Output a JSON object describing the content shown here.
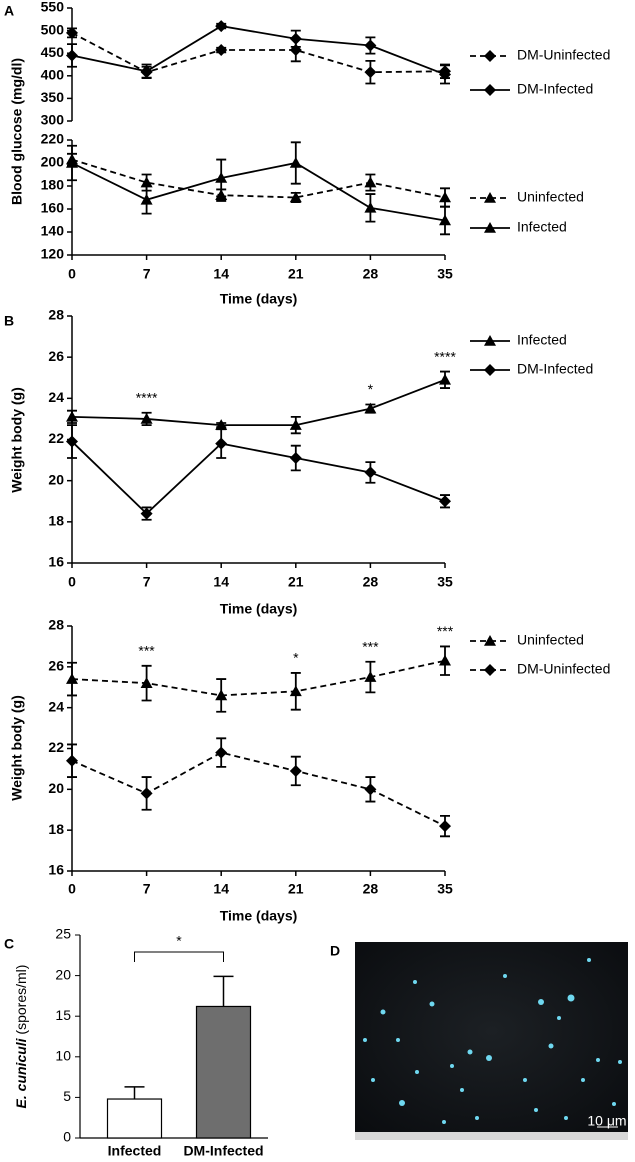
{
  "chart_data": [
    {
      "type": "line",
      "panel_label": "A",
      "ylabel": "Blood glucose (mg/dl)",
      "x": [
        0,
        7,
        14,
        21,
        28,
        35
      ],
      "ylim": [
        300,
        550
      ],
      "yticks": [
        300,
        350,
        400,
        450,
        500,
        550
      ],
      "series": [
        {
          "name": "DM-Uninfected",
          "color": "#000000",
          "marker": "diamond",
          "dashed": true,
          "values": [
            495,
            408,
            457,
            457,
            408,
            410
          ],
          "errors": [
            10,
            12,
            5,
            25,
            25,
            15
          ]
        },
        {
          "name": "DM-Infected",
          "color": "#000000",
          "marker": "diamond",
          "dashed": false,
          "values": [
            445,
            410,
            510,
            482,
            467,
            403
          ],
          "errors": [
            25,
            15,
            5,
            18,
            18,
            20
          ]
        }
      ]
    },
    {
      "type": "line",
      "xlabel": "Time (days)",
      "x": [
        0,
        7,
        14,
        21,
        28,
        35
      ],
      "xticks": [
        0,
        7,
        14,
        21,
        28,
        35
      ],
      "ylim": [
        120,
        220
      ],
      "yticks": [
        120,
        140,
        160,
        180,
        200,
        220
      ],
      "series": [
        {
          "name": "Uninfected",
          "color": "#000000",
          "marker": "triangle",
          "dashed": true,
          "values": [
            203,
            183,
            172,
            170,
            183,
            170
          ],
          "errors": [
            5,
            7,
            5,
            4,
            7,
            8
          ]
        },
        {
          "name": "Infected",
          "color": "#000000",
          "marker": "triangle",
          "dashed": false,
          "values": [
            200,
            168,
            187,
            200,
            161,
            150
          ],
          "errors": [
            15,
            12,
            16,
            18,
            12,
            12
          ]
        }
      ]
    },
    {
      "type": "line",
      "panel_label": "B",
      "ylabel": "Weight body (g)",
      "xlabel": "Time (days)",
      "x": [
        0,
        7,
        14,
        21,
        28,
        35
      ],
      "xticks": [
        0,
        7,
        14,
        21,
        28,
        35
      ],
      "ylim": [
        16,
        28
      ],
      "yticks": [
        16,
        18,
        20,
        22,
        24,
        26,
        28
      ],
      "series": [
        {
          "name": "Infected",
          "color": "#000000",
          "marker": "triangle",
          "dashed": false,
          "values": [
            23.1,
            23.0,
            22.7,
            22.7,
            23.5,
            24.9
          ],
          "errors": [
            0.3,
            0.3,
            0.1,
            0.4,
            0.2,
            0.4
          ]
        },
        {
          "name": "DM-Infected",
          "color": "#000000",
          "marker": "diamond",
          "dashed": false,
          "values": [
            21.9,
            18.4,
            21.8,
            21.1,
            20.4,
            19.0
          ],
          "errors": [
            0.8,
            0.3,
            0.7,
            0.6,
            0.5,
            0.3
          ]
        }
      ],
      "annotations": [
        {
          "text": "****",
          "x": 7
        },
        {
          "text": "*",
          "x": 28
        },
        {
          "text": "****",
          "x": 35
        }
      ]
    },
    {
      "type": "line",
      "ylabel": "Weight body (g)",
      "xlabel": "Time (days)",
      "x": [
        0,
        7,
        14,
        21,
        28,
        35
      ],
      "xticks": [
        0,
        7,
        14,
        21,
        28,
        35
      ],
      "ylim": [
        16,
        28
      ],
      "yticks": [
        16,
        18,
        20,
        22,
        24,
        26,
        28
      ],
      "series": [
        {
          "name": "Uninfected",
          "color": "#000000",
          "marker": "triangle",
          "dashed": true,
          "values": [
            25.4,
            25.2,
            24.6,
            24.8,
            25.5,
            26.3
          ],
          "errors": [
            0.8,
            0.85,
            0.8,
            0.9,
            0.75,
            0.7
          ]
        },
        {
          "name": "DM-Uninfected",
          "color": "#000000",
          "marker": "diamond",
          "dashed": true,
          "values": [
            21.4,
            19.8,
            21.8,
            20.9,
            20.0,
            18.2
          ],
          "errors": [
            0.8,
            0.8,
            0.7,
            0.7,
            0.6,
            0.5
          ]
        }
      ],
      "annotations": [
        {
          "text": "***",
          "x": 7
        },
        {
          "text": "*",
          "x": 21
        },
        {
          "text": "***",
          "x": 28
        },
        {
          "text": "***",
          "x": 35
        }
      ]
    },
    {
      "type": "bar",
      "panel_label": "C",
      "ylabel": {
        "species": "E. cuniculi",
        "unit": "(spores/ml)"
      },
      "categories": [
        "Infected",
        "DM-Infected"
      ],
      "values": [
        4.8,
        16.2
      ],
      "errors": [
        1.5,
        3.7
      ],
      "colors": [
        "#ffffff",
        "#6e6e6e"
      ],
      "ylim": [
        0,
        25
      ],
      "yticks": [
        0,
        5,
        10,
        15,
        20,
        25
      ],
      "significance": "*"
    },
    {
      "type": "image",
      "panel_label": "D",
      "scale_label": "10 μm"
    }
  ]
}
